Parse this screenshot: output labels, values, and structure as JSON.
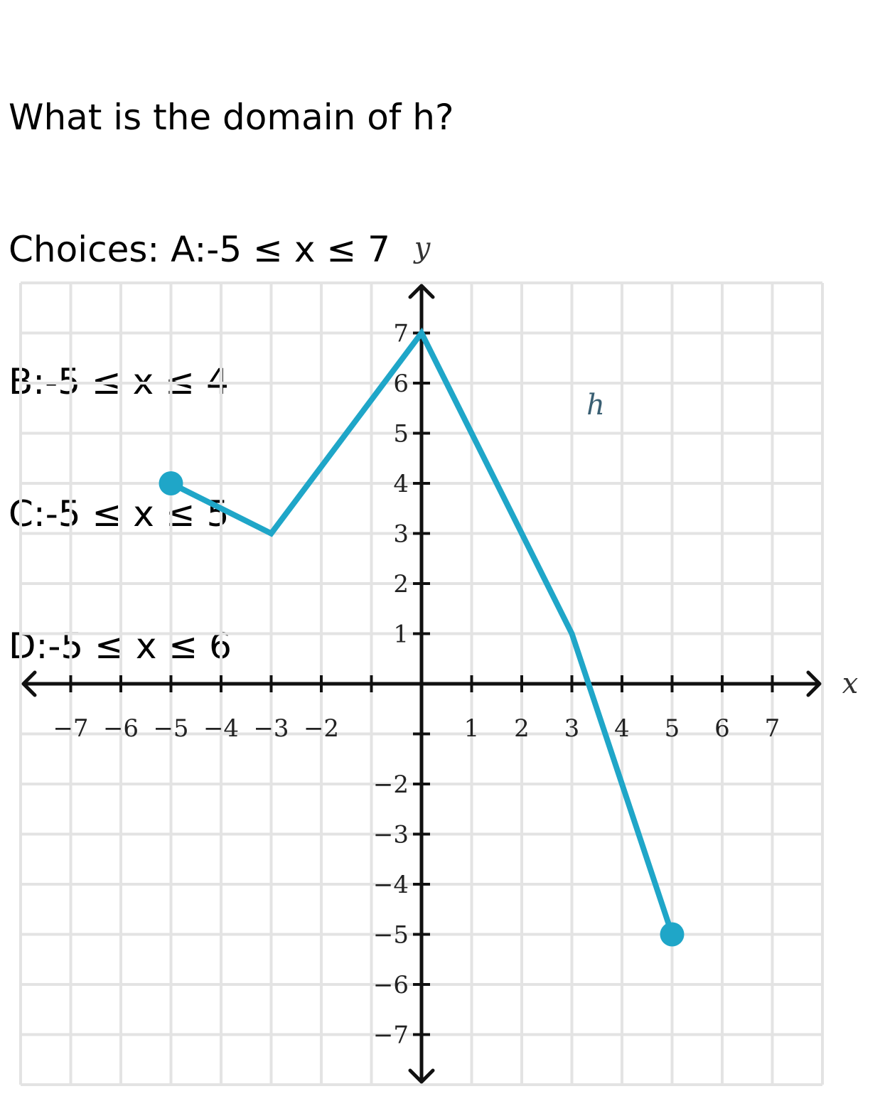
{
  "question": {
    "prompt": "What is the domain of h?",
    "choices": [
      "Choices: A:-5 ≤ x ≤ 7",
      "B:-5 ≤ x ≤ 4",
      "C:-5 ≤ x ≤ 5",
      "D:-5 ≤ x ≤ 6"
    ]
  },
  "chart_data": {
    "type": "line",
    "xlabel": "x",
    "ylabel": "y",
    "xlim": [
      -8,
      8
    ],
    "ylim": [
      -8,
      8
    ],
    "x_ticks": [
      -7,
      -6,
      -5,
      -4,
      -3,
      -2,
      1,
      2,
      3,
      4,
      5,
      6,
      7
    ],
    "y_ticks": [
      7,
      6,
      5,
      4,
      3,
      2,
      1,
      -2,
      -3,
      -4,
      -5,
      -6,
      -7
    ],
    "grid": true,
    "series": [
      {
        "name": "h",
        "color": "#1fa6c8",
        "points": [
          [
            -5,
            4
          ],
          [
            -3,
            3
          ],
          [
            0,
            7
          ],
          [
            3,
            1
          ],
          [
            5,
            -5
          ]
        ],
        "closed_endpoints": [
          [
            -5,
            4
          ],
          [
            5,
            -5
          ]
        ]
      }
    ]
  }
}
